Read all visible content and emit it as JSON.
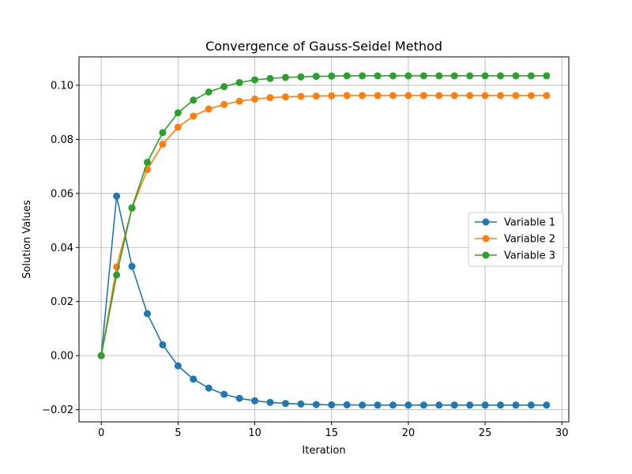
{
  "chart_data": {
    "type": "line",
    "title": "Convergence of Gauss-Seidel Method",
    "xlabel": "Iteration",
    "ylabel": "Solution Values",
    "xlim": [
      -1.45,
      30.45
    ],
    "ylim": [
      -0.0245,
      0.1105
    ],
    "x_ticks": [
      0,
      5,
      10,
      15,
      20,
      25,
      30
    ],
    "y_ticks": [
      -0.02,
      0.0,
      0.02,
      0.04,
      0.06,
      0.08,
      0.1
    ],
    "x_tick_labels": [
      "0",
      "5",
      "10",
      "15",
      "20",
      "25",
      "30"
    ],
    "y_tick_labels": [
      "−0.02",
      "0.00",
      "0.02",
      "0.04",
      "0.06",
      "0.08",
      "0.10"
    ],
    "grid": true,
    "legend_position": "center-right",
    "x": [
      0,
      1,
      2,
      3,
      4,
      5,
      6,
      7,
      8,
      9,
      10,
      11,
      12,
      13,
      14,
      15,
      16,
      17,
      18,
      19,
      20,
      21,
      22,
      23,
      24,
      25,
      26,
      27,
      28,
      29
    ],
    "series": [
      {
        "name": "Variable 1",
        "color": "#1f77b4",
        "values": [
          0.0,
          0.059,
          0.033,
          0.0155,
          0.004,
          -0.0038,
          -0.0087,
          -0.012,
          -0.0143,
          -0.0158,
          -0.0167,
          -0.0173,
          -0.0177,
          -0.0179,
          -0.0181,
          -0.0182,
          -0.0182,
          -0.0183,
          -0.0183,
          -0.0183,
          -0.0183,
          -0.0183,
          -0.0183,
          -0.0183,
          -0.0183,
          -0.0183,
          -0.0183,
          -0.0183,
          -0.0183,
          -0.0183
        ]
      },
      {
        "name": "Variable 2",
        "color": "#ff7f0e",
        "values": [
          0.0,
          0.0328,
          0.0545,
          0.0688,
          0.0782,
          0.0845,
          0.0886,
          0.0912,
          0.0929,
          0.0941,
          0.0949,
          0.0954,
          0.0957,
          0.0959,
          0.096,
          0.0961,
          0.0962,
          0.0962,
          0.0962,
          0.0962,
          0.0962,
          0.0962,
          0.0962,
          0.0962,
          0.0962,
          0.0962,
          0.0962,
          0.0962,
          0.0962,
          0.0962
        ]
      },
      {
        "name": "Variable 3",
        "color": "#2ca02c",
        "values": [
          0.0,
          0.0298,
          0.0547,
          0.0715,
          0.0825,
          0.0898,
          0.0945,
          0.0975,
          0.0995,
          0.101,
          0.102,
          0.1025,
          0.1029,
          0.1031,
          0.1033,
          0.1034,
          0.1035,
          0.1035,
          0.1035,
          0.1035,
          0.1035,
          0.1035,
          0.1035,
          0.1035,
          0.1035,
          0.1035,
          0.1035,
          0.1035,
          0.1035,
          0.1035
        ]
      }
    ]
  }
}
